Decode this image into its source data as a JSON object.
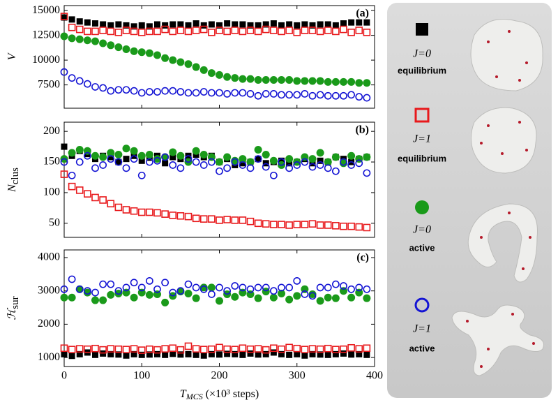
{
  "chart_data": [
    {
      "type": "scatter",
      "panel_label": "(a)",
      "ylabel": "V",
      "x": [
        0,
        10,
        20,
        30,
        40,
        50,
        60,
        70,
        80,
        90,
        100,
        110,
        120,
        130,
        140,
        150,
        160,
        170,
        180,
        190,
        200,
        210,
        220,
        230,
        240,
        250,
        260,
        270,
        280,
        290,
        300,
        310,
        320,
        330,
        340,
        350,
        360,
        370,
        380,
        390
      ],
      "xlim": [
        0,
        400
      ],
      "xticks": [
        0,
        100,
        200,
        300,
        400
      ],
      "ylim": [
        5150,
        15500
      ],
      "yticks": [
        7500,
        10000,
        12500,
        15000
      ],
      "series": [
        {
          "marker": "square",
          "filled": true,
          "color": "#000000",
          "values": [
            14300,
            14100,
            13900,
            13800,
            13700,
            13600,
            13500,
            13600,
            13500,
            13400,
            13500,
            13400,
            13600,
            13500,
            13600,
            13600,
            13500,
            13700,
            13500,
            13600,
            13500,
            13700,
            13600,
            13600,
            13500,
            13500,
            13600,
            13700,
            13500,
            13600,
            13500,
            13600,
            13500,
            13600,
            13600,
            13500,
            13700,
            13800,
            13800,
            13800
          ]
        },
        {
          "marker": "square",
          "filled": false,
          "color": "#e8191c",
          "values": [
            14400,
            13300,
            13100,
            12900,
            12900,
            13000,
            12900,
            12800,
            13000,
            12900,
            12800,
            12900,
            12900,
            13100,
            12900,
            13000,
            12900,
            13000,
            13100,
            12800,
            13000,
            12900,
            13000,
            12900,
            13000,
            12900,
            13100,
            13000,
            12900,
            13000,
            12800,
            13000,
            13000,
            12900,
            13000,
            12900,
            13100,
            12800,
            13000,
            12800
          ]
        },
        {
          "marker": "circle",
          "filled": true,
          "color": "#1a9a1a",
          "values": [
            12400,
            12200,
            12100,
            12000,
            11900,
            11700,
            11500,
            11300,
            11100,
            10900,
            10800,
            10700,
            10500,
            10200,
            10000,
            9800,
            9600,
            9300,
            9000,
            8700,
            8500,
            8300,
            8200,
            8100,
            8100,
            8000,
            8000,
            8000,
            8000,
            8000,
            7900,
            7900,
            7900,
            7900,
            7800,
            7800,
            7800,
            7800,
            7700,
            7700
          ]
        },
        {
          "marker": "circle",
          "filled": false,
          "color": "#1414d4",
          "values": [
            8800,
            8200,
            7900,
            7600,
            7300,
            7200,
            6900,
            7000,
            7000,
            6900,
            6700,
            6800,
            6800,
            6900,
            6900,
            6800,
            6700,
            6700,
            6800,
            6700,
            6700,
            6600,
            6700,
            6700,
            6600,
            6400,
            6600,
            6600,
            6500,
            6500,
            6500,
            6600,
            6400,
            6500,
            6400,
            6400,
            6400,
            6500,
            6300,
            6200
          ]
        }
      ]
    },
    {
      "type": "scatter",
      "panel_label": "(b)",
      "ylabel": "N",
      "ylabel_subscript": "clus",
      "x": [
        0,
        10,
        20,
        30,
        40,
        50,
        60,
        70,
        80,
        90,
        100,
        110,
        120,
        130,
        140,
        150,
        160,
        170,
        180,
        190,
        200,
        210,
        220,
        230,
        240,
        250,
        260,
        270,
        280,
        290,
        300,
        310,
        320,
        330,
        340,
        350,
        360,
        370,
        380,
        390
      ],
      "xlim": [
        0,
        400
      ],
      "xticks": [
        0,
        100,
        200,
        300,
        400
      ],
      "ylim": [
        27,
        215
      ],
      "yticks": [
        50,
        100,
        150,
        200
      ],
      "series": [
        {
          "marker": "square",
          "filled": true,
          "color": "#000000",
          "values": [
            175,
            160,
            168,
            163,
            155,
            160,
            158,
            150,
            155,
            160,
            152,
            157,
            160,
            148,
            158,
            155,
            160,
            162,
            158,
            160,
            150,
            155,
            145,
            148,
            150,
            155,
            148,
            150,
            152,
            148,
            150,
            155,
            148,
            152,
            150,
            158,
            155,
            150,
            155,
            158
          ]
        },
        {
          "marker": "square",
          "filled": false,
          "color": "#e8191c",
          "values": [
            130,
            110,
            104,
            98,
            92,
            88,
            82,
            76,
            72,
            70,
            68,
            68,
            67,
            65,
            63,
            62,
            61,
            58,
            57,
            57,
            55,
            56,
            55,
            55,
            53,
            50,
            49,
            48,
            48,
            47,
            48,
            48,
            49,
            47,
            47,
            46,
            45,
            45,
            44,
            43
          ]
        },
        {
          "marker": "circle",
          "filled": true,
          "color": "#1a9a1a",
          "values": [
            155,
            165,
            170,
            168,
            160,
            158,
            165,
            162,
            172,
            168,
            160,
            162,
            155,
            158,
            166,
            160,
            150,
            168,
            162,
            158,
            150,
            158,
            152,
            155,
            150,
            170,
            162,
            152,
            145,
            155,
            150,
            158,
            155,
            165,
            150,
            158,
            148,
            160,
            155,
            158
          ]
        },
        {
          "marker": "circle",
          "filled": false,
          "color": "#1414d4",
          "values": [
            150,
            128,
            150,
            160,
            140,
            145,
            155,
            150,
            140,
            155,
            128,
            150,
            152,
            158,
            145,
            140,
            155,
            150,
            145,
            150,
            135,
            140,
            150,
            145,
            140,
            155,
            142,
            128,
            150,
            140,
            145,
            150,
            142,
            145,
            140,
            135,
            150,
            145,
            148,
            132
          ]
        }
      ]
    },
    {
      "type": "scatter",
      "panel_label": "(c)",
      "ylabel": "ℋ",
      "ylabel_subscript": "sur",
      "xlabel": "T",
      "xlabel_subscript": "MCS",
      "xlabel_rest": " (×10³ steps)",
      "x": [
        0,
        10,
        20,
        30,
        40,
        50,
        60,
        70,
        80,
        90,
        100,
        110,
        120,
        130,
        140,
        150,
        160,
        170,
        180,
        190,
        200,
        210,
        220,
        230,
        240,
        250,
        260,
        270,
        280,
        290,
        300,
        310,
        320,
        330,
        340,
        350,
        360,
        370,
        380,
        390
      ],
      "xlim": [
        0,
        400
      ],
      "xticks": [
        0,
        100,
        200,
        300,
        400
      ],
      "ylim": [
        730,
        4230
      ],
      "yticks": [
        1000,
        2000,
        3000,
        4000
      ],
      "series": [
        {
          "marker": "square",
          "filled": true,
          "color": "#000000",
          "values": [
            1100,
            1050,
            1100,
            1150,
            1080,
            1120,
            1100,
            1090,
            1060,
            1100,
            1080,
            1090,
            1100,
            1080,
            1110,
            1090,
            1100,
            1080,
            1060,
            1100,
            1090,
            1110,
            1100,
            1080,
            1120,
            1090,
            1100,
            1150,
            1100,
            1080,
            1100,
            1060,
            1100,
            1090,
            1080,
            1100,
            1120,
            1090,
            1100,
            1080
          ]
        },
        {
          "marker": "square",
          "filled": false,
          "color": "#e8191c",
          "values": [
            1280,
            1240,
            1260,
            1250,
            1270,
            1230,
            1260,
            1250,
            1240,
            1260,
            1220,
            1250,
            1230,
            1260,
            1280,
            1230,
            1340,
            1260,
            1240,
            1250,
            1300,
            1250,
            1240,
            1280,
            1250,
            1260,
            1230,
            1280,
            1250,
            1300,
            1270,
            1240,
            1260,
            1250,
            1270,
            1240,
            1250,
            1290,
            1260,
            1280
          ]
        },
        {
          "marker": "circle",
          "filled": true,
          "color": "#1a9a1a",
          "values": [
            2800,
            2800,
            3050,
            2950,
            2720,
            2720,
            2880,
            2920,
            2950,
            2800,
            2950,
            2880,
            2900,
            2650,
            2850,
            2980,
            2920,
            2780,
            3100,
            3100,
            2700,
            2900,
            2820,
            2950,
            2900,
            2780,
            2980,
            2800,
            2920,
            2740,
            2850,
            3050,
            2900,
            2700,
            2800,
            2780,
            3000,
            2800,
            2950,
            2780
          ]
        },
        {
          "marker": "circle",
          "filled": false,
          "color": "#1414d4",
          "values": [
            3050,
            3350,
            3050,
            3000,
            2950,
            3200,
            3200,
            3000,
            3100,
            3250,
            3100,
            3300,
            3050,
            3250,
            2950,
            3000,
            3200,
            3100,
            3050,
            2900,
            3100,
            3000,
            3150,
            3100,
            3050,
            3100,
            3100,
            3000,
            3100,
            3100,
            3300,
            2900,
            2850,
            3100,
            3100,
            3200,
            3150,
            3050,
            3100,
            3050
          ]
        }
      ]
    }
  ],
  "legend": [
    {
      "label": "J=0",
      "caption": "equilibrium",
      "marker": "square",
      "filled": true,
      "color": "#000000"
    },
    {
      "label": "J=1",
      "caption": "equilibrium",
      "marker": "square",
      "filled": false,
      "color": "#e8191c"
    },
    {
      "label": "J=0",
      "caption": "active",
      "marker": "circle",
      "filled": true,
      "color": "#1a9a1a"
    },
    {
      "label": "J=1",
      "caption": "active",
      "marker": "circle",
      "filled": false,
      "color": "#1414d4"
    }
  ]
}
